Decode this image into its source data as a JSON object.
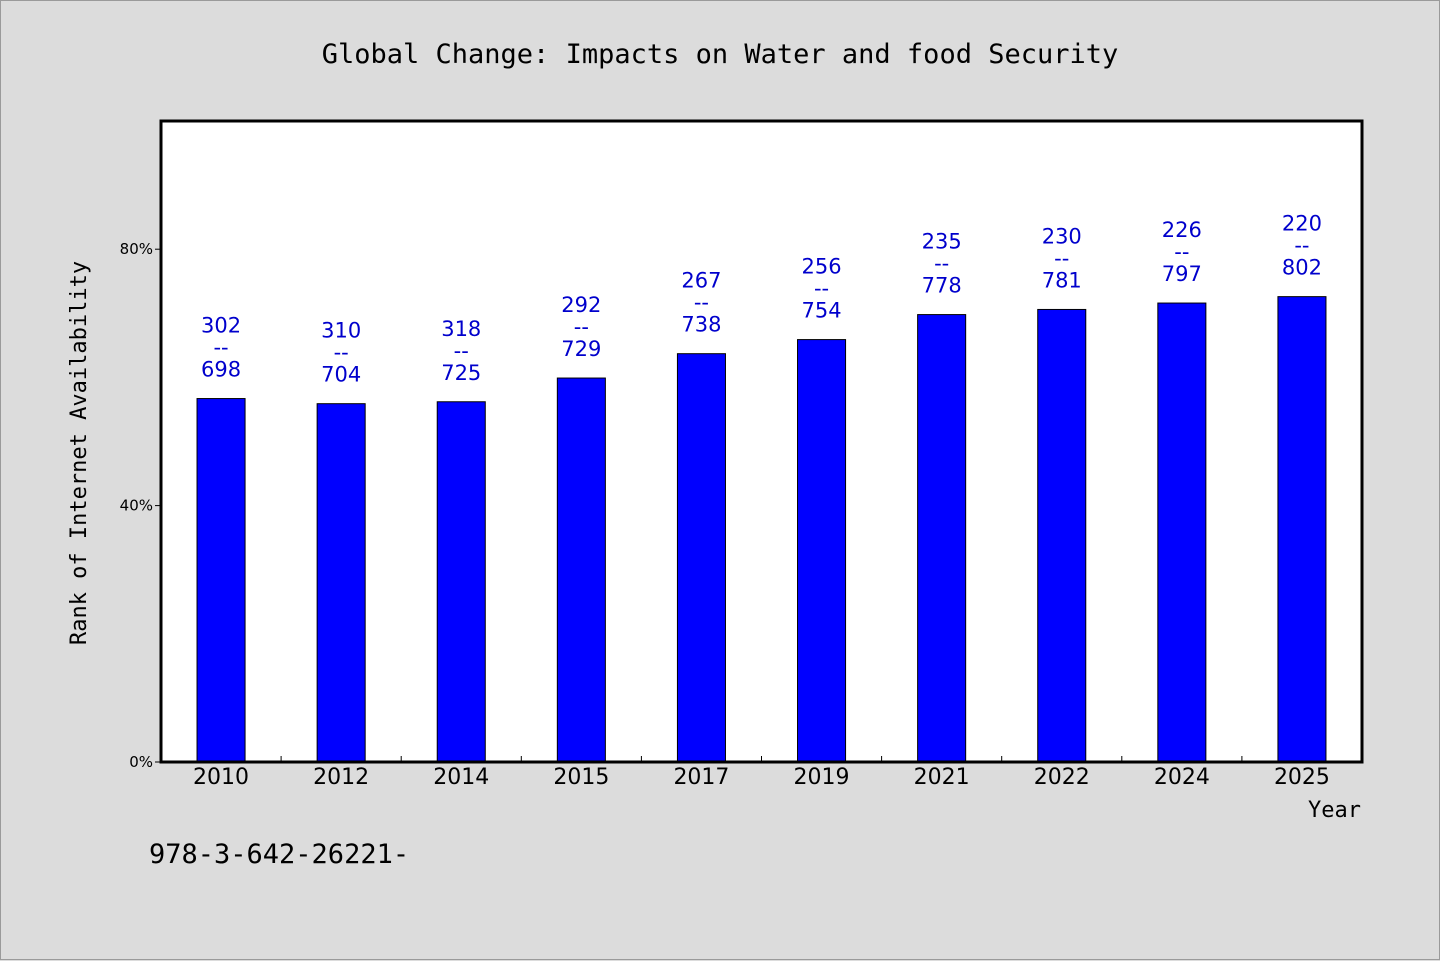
{
  "chart_data": {
    "type": "bar",
    "title": "Global Change: Impacts on Water and food Security",
    "xlabel": "Year",
    "ylabel": "Rank of Internet Availability",
    "footnote": "978-3-642-26221-",
    "categories": [
      "2010",
      "2012",
      "2014",
      "2015",
      "2017",
      "2019",
      "2021",
      "2022",
      "2024",
      "2025"
    ],
    "values": [
      56.7,
      55.9,
      56.2,
      59.9,
      63.7,
      65.9,
      69.8,
      70.6,
      71.6,
      72.6
    ],
    "bar_labels": [
      {
        "top": "302",
        "bottom": "698"
      },
      {
        "top": "310",
        "bottom": "704"
      },
      {
        "top": "318",
        "bottom": "725"
      },
      {
        "top": "292",
        "bottom": "729"
      },
      {
        "top": "267",
        "bottom": "738"
      },
      {
        "top": "256",
        "bottom": "754"
      },
      {
        "top": "235",
        "bottom": "778"
      },
      {
        "top": "230",
        "bottom": "781"
      },
      {
        "top": "226",
        "bottom": "797"
      },
      {
        "top": "220",
        "bottom": "802"
      }
    ],
    "label_separator": "--",
    "ylim": [
      0,
      100
    ],
    "yticks": [
      {
        "value": 0,
        "label": "0%"
      },
      {
        "value": 40,
        "label": "40%"
      },
      {
        "value": 80,
        "label": "80%"
      }
    ],
    "grid": false,
    "legend": "none",
    "colors": {
      "bar": "#0000ff",
      "bar_label": "#0000cc",
      "plot_bg": "#ffffff",
      "page_bg": "#dcdcdc",
      "axis": "#000000"
    }
  }
}
